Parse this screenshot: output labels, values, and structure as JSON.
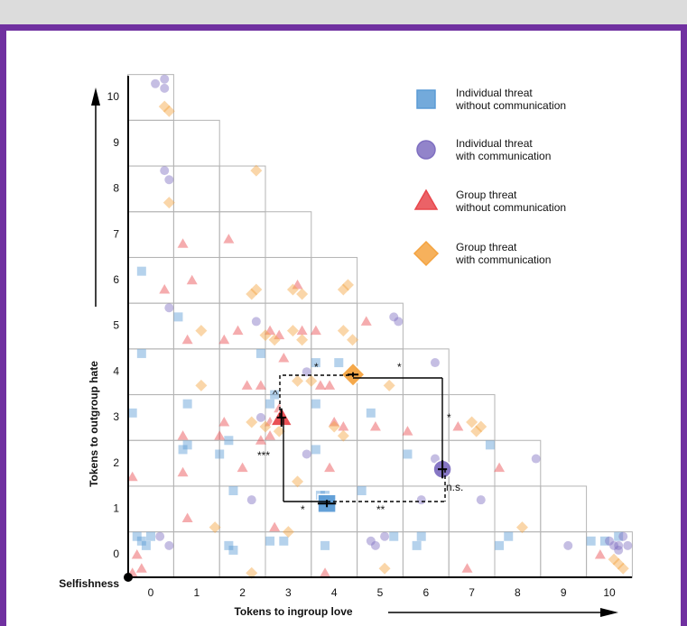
{
  "chart_data": {
    "type": "scatter",
    "x_label": "Tokens to ingroup love",
    "y_label": "Tokens to outgroup hate",
    "origin_label": "Selfishness",
    "xlim": [
      -0.5,
      10.5
    ],
    "ylim": [
      -0.5,
      10.5
    ],
    "xticks": [
      0,
      1,
      2,
      3,
      4,
      5,
      6,
      7,
      8,
      9,
      10
    ],
    "yticks": [
      0,
      1,
      2,
      3,
      4,
      5,
      6,
      7,
      8,
      9,
      10
    ],
    "annotations": [
      "*",
      "*",
      "^",
      "*",
      "***",
      "*",
      "**",
      "n.s."
    ],
    "series": [
      {
        "name": "Individual threat\nwithout communication",
        "marker": "square",
        "color": "#5b9bd5",
        "mean_x": 3.84,
        "mean_y": 1.12,
        "mean_x_err": 0.2,
        "mean_y_err": 0.08,
        "x": [
          -0.2,
          -0.2,
          -0.4,
          0.7,
          0.8,
          0.8,
          0.6,
          1.5,
          1.7,
          1.8,
          2.6,
          2.4,
          3.6,
          3.6,
          3.6,
          3.8,
          4.1,
          4.8,
          4.6,
          5.6,
          7.4,
          -0.3,
          -0.2,
          -0.1,
          0,
          1.7,
          1.8,
          2.6,
          2.9,
          3.8,
          5.3,
          5.8,
          5.9,
          7.6,
          7.8,
          9.6,
          9.9,
          10.2,
          3.7,
          2.7
        ],
        "y": [
          6.2,
          4.4,
          3.1,
          2.3,
          2.4,
          3.3,
          5.2,
          2.2,
          2.5,
          1.4,
          3.3,
          4.4,
          4.2,
          3.3,
          2.3,
          1.3,
          4.2,
          3.1,
          1.4,
          2.2,
          2.4,
          0.4,
          0.3,
          0.2,
          0.4,
          0.2,
          0.1,
          0.3,
          0.3,
          0.2,
          0.4,
          0.2,
          0.4,
          0.2,
          0.4,
          0.3,
          0.3,
          0.4,
          1.3,
          3.5
        ]
      },
      {
        "name": "Individual threat\nwith communication",
        "marker": "circle",
        "color": "#7f6fc1",
        "mean_x": 6.36,
        "mean_y": 1.87,
        "mean_x_err": 0.1,
        "mean_y_err": 0.2,
        "x": [
          0.1,
          0.3,
          0.3,
          0.3,
          0.4,
          0.4,
          2.3,
          2.4,
          2.2,
          3.4,
          3.4,
          5.3,
          5.4,
          6.2,
          6.2,
          7.2,
          8.4,
          9.1,
          10.0,
          10.1,
          10.2,
          10.3,
          10.4,
          10.2,
          4.8,
          5.1,
          4.9,
          0.4,
          0.2,
          5.9
        ],
        "y": [
          10.3,
          10.4,
          10.2,
          8.4,
          8.2,
          5.4,
          5.1,
          3.0,
          1.2,
          4.0,
          2.2,
          5.2,
          5.1,
          4.2,
          2.1,
          1.2,
          2.1,
          0.2,
          0.3,
          0.2,
          0.1,
          0.4,
          0.2,
          0.2,
          0.3,
          0.4,
          0.2,
          0.2,
          0.4,
          1.2
        ]
      },
      {
        "name": "Group threat\nwithout communication",
        "marker": "triangle",
        "color": "#e8474c",
        "mean_x": 2.85,
        "mean_y": 3.0,
        "mean_x_err": 0.1,
        "mean_y_err": 0.2,
        "x": [
          0.7,
          1.7,
          0.3,
          0.9,
          0.8,
          1.6,
          1.9,
          2.1,
          2.4,
          2.6,
          2.8,
          3.2,
          2.9,
          3.3,
          3.6,
          3.7,
          3.9,
          4.7,
          4.0,
          3.9,
          4.2,
          4.9,
          5.6,
          6.7,
          7.6,
          2.6,
          2.4,
          1.6,
          1.5,
          0.7,
          0.7,
          2.0,
          -0.4,
          0.8,
          2.7,
          -0.4,
          -0.2,
          -0.3,
          3.8,
          6.9,
          9.8,
          2.6,
          2.8
        ],
        "y": [
          6.8,
          6.9,
          5.8,
          6.0,
          4.7,
          4.7,
          4.9,
          3.7,
          3.7,
          4.9,
          4.8,
          5.9,
          4.3,
          4.9,
          4.9,
          3.7,
          3.7,
          5.1,
          2.9,
          1.9,
          2.8,
          2.8,
          2.7,
          2.8,
          1.9,
          2.6,
          2.5,
          2.9,
          2.6,
          2.6,
          1.8,
          1.9,
          1.7,
          0.8,
          0.6,
          -0.4,
          -0.3,
          0.0,
          -0.4,
          -0.3,
          0.0,
          2.9,
          3.2
        ]
      },
      {
        "name": "Group threat\nwith communication",
        "marker": "diamond",
        "color": "#f4a340",
        "mean_x": 4.41,
        "mean_y": 3.94,
        "mean_x_err": 0.12,
        "mean_y_err": 0.05,
        "x": [
          0.3,
          0.4,
          0.4,
          2.3,
          2.2,
          2.3,
          2.5,
          2.7,
          3.1,
          3.3,
          3.1,
          3.3,
          4.2,
          4.3,
          4.2,
          4.4,
          1.1,
          1.1,
          3.2,
          3.5,
          2.2,
          2.5,
          2.8,
          4.0,
          4.2,
          5.2,
          7.0,
          7.2,
          7.1,
          3.2,
          1.4,
          8.1,
          5.1,
          2.2,
          10.2,
          10.3,
          10.1,
          3.0
        ],
        "y": [
          9.8,
          9.7,
          7.7,
          8.4,
          5.7,
          5.8,
          4.8,
          4.7,
          5.8,
          5.7,
          4.9,
          4.7,
          5.8,
          5.9,
          4.9,
          4.7,
          4.9,
          3.7,
          3.8,
          3.8,
          2.9,
          2.8,
          2.7,
          2.8,
          2.6,
          3.7,
          2.9,
          2.8,
          2.7,
          1.6,
          0.6,
          0.6,
          -0.3,
          -0.4,
          -0.2,
          -0.3,
          -0.1,
          0.5
        ]
      }
    ]
  }
}
